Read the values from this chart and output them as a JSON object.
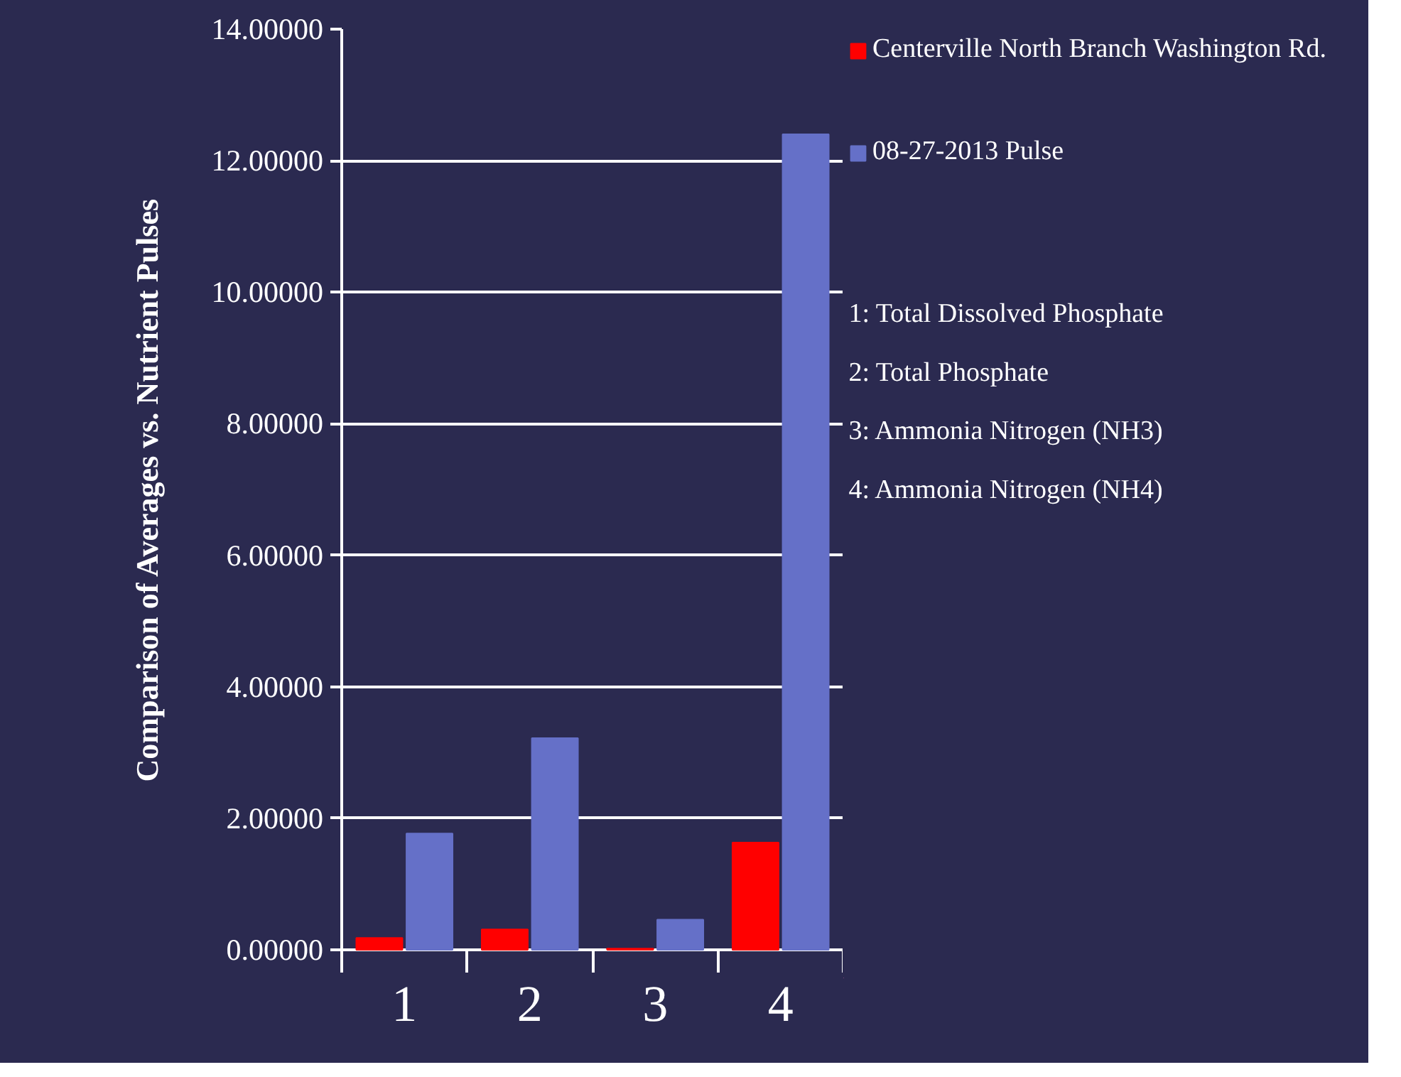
{
  "chart_data": {
    "type": "bar",
    "ylabel": "Comparison of Averages vs. Nutrient Pulses",
    "categories": [
      "1",
      "2",
      "3",
      "4"
    ],
    "series": [
      {
        "name": "Centerville North Branch Washington Rd.",
        "color": "#ff0000",
        "values": [
          0.18,
          0.31,
          0.02,
          1.63
        ]
      },
      {
        "name": "08-27-2013 Pulse",
        "color": "#6570c8",
        "values": [
          1.77,
          3.22,
          0.46,
          12.4
        ]
      }
    ],
    "ylim": [
      0,
      14
    ],
    "yticks": [
      {
        "value": 0,
        "label": "0.00000"
      },
      {
        "value": 2,
        "label": "2.00000"
      },
      {
        "value": 4,
        "label": "4.00000"
      },
      {
        "value": 6,
        "label": "6.00000"
      },
      {
        "value": 8,
        "label": "8.00000"
      },
      {
        "value": 10,
        "label": "10.00000"
      },
      {
        "value": 12,
        "label": "12.00000"
      },
      {
        "value": 14,
        "label": "14.00000"
      }
    ],
    "grid": "y",
    "legend": "right",
    "annotations": [
      "1: Total Dissolved Phosphate",
      "2: Total Phosphate",
      "3: Ammonia Nitrogen (NH3)",
      "4: Ammonia Nitrogen (NH4)"
    ]
  }
}
